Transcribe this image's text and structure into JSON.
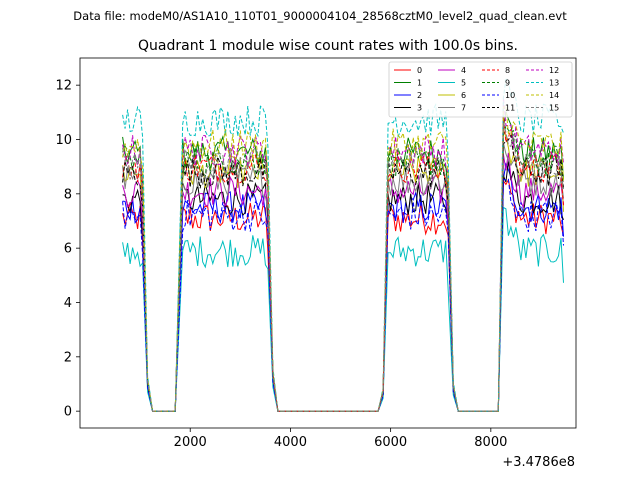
{
  "chart_data": {
    "type": "line",
    "suptitle": "Data file: modeM0/AS1A10_110T01_9000004104_28568cztM0_level2_quad_clean.evt",
    "title": "Quadrant 1 module wise count rates with 100.0s bins.",
    "xlabel": "",
    "ylabel": "",
    "x_offset_label": "+3.4786e8",
    "xlim": [
      -200,
      9700
    ],
    "ylim": [
      -0.62,
      13.0
    ],
    "x_ticks": [
      2000,
      4000,
      6000,
      8000
    ],
    "x_tick_labels": [
      "2000",
      "4000",
      "6000",
      "8000"
    ],
    "y_ticks": [
      0,
      2,
      4,
      6,
      8,
      10,
      12
    ],
    "y_tick_labels": [
      "0",
      "2",
      "4",
      "6",
      "8",
      "10",
      "12"
    ],
    "legend_position": "top-right",
    "segments": [
      {
        "start": 650,
        "end": 1050
      },
      {
        "start": 1850,
        "end": 3550
      },
      {
        "start": 5950,
        "end": 7150
      },
      {
        "start": 8250,
        "end": 9450
      }
    ],
    "gap_points": [
      1150,
      1250,
      1700,
      3650,
      3750,
      5750,
      5850,
      7250,
      7350,
      8050,
      8150
    ],
    "series": [
      {
        "name": "0",
        "color": "#ff0000",
        "dash": "solid",
        "level": 7.1
      },
      {
        "name": "1",
        "color": "#008000",
        "dash": "solid",
        "level": 9.5
      },
      {
        "name": "2",
        "color": "#0000ff",
        "dash": "solid",
        "level": 7.5
      },
      {
        "name": "3",
        "color": "#000000",
        "dash": "solid",
        "level": 7.8
      },
      {
        "name": "4",
        "color": "#bf00bf",
        "dash": "solid",
        "level": 8.1
      },
      {
        "name": "5",
        "color": "#00bfbf",
        "dash": "solid",
        "level": 5.9
      },
      {
        "name": "6",
        "color": "#bfbf00",
        "dash": "solid",
        "level": 8.8
      },
      {
        "name": "7",
        "color": "#808080",
        "dash": "solid",
        "level": 8.5
      },
      {
        "name": "8",
        "color": "#ff0000",
        "dash": "dashed",
        "level": 9.0
      },
      {
        "name": "9",
        "color": "#008000",
        "dash": "dashed",
        "level": 9.2
      },
      {
        "name": "10",
        "color": "#0000ff",
        "dash": "dashed",
        "level": 7.2
      },
      {
        "name": "11",
        "color": "#000000",
        "dash": "dashed",
        "level": 8.8
      },
      {
        "name": "12",
        "color": "#bf00bf",
        "dash": "dashed",
        "level": 9.6
      },
      {
        "name": "13",
        "color": "#00bfbf",
        "dash": "dashed",
        "level": 10.7
      },
      {
        "name": "14",
        "color": "#bfbf00",
        "dash": "dashed",
        "level": 9.8
      },
      {
        "name": "15",
        "color": "#808080",
        "dash": "dashed",
        "level": 9.1
      }
    ]
  }
}
